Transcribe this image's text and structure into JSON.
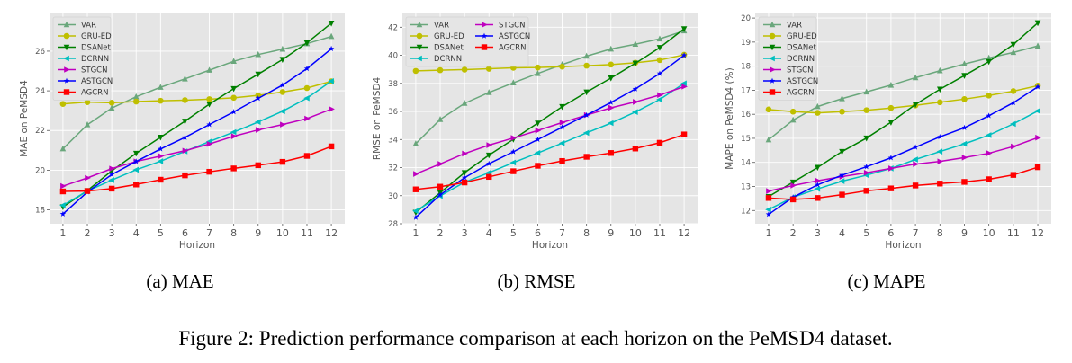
{
  "figure_caption": "Figure 2: Prediction performance comparison at each horizon on the PeMSD4 dataset.",
  "series_styles": [
    {
      "name": "VAR",
      "color": "#6aa77c",
      "marker": "triangle-up"
    },
    {
      "name": "GRU-ED",
      "color": "#bfbf00",
      "marker": "circle"
    },
    {
      "name": "DSANet",
      "color": "#008000",
      "marker": "triangle-down"
    },
    {
      "name": "DCRNN",
      "color": "#00bfbf",
      "marker": "triangle-left"
    },
    {
      "name": "STGCN",
      "color": "#bf00bf",
      "marker": "triangle-right"
    },
    {
      "name": "ASTGCN",
      "color": "#0000ff",
      "marker": "star"
    },
    {
      "name": "AGCRN",
      "color": "#ff0000",
      "marker": "square"
    }
  ],
  "chart_data": [
    {
      "type": "line",
      "caption": "(a) MAE",
      "xlabel": "Horizon",
      "ylabel": "MAE on PeMSD4",
      "x": [
        1,
        2,
        3,
        4,
        5,
        6,
        7,
        8,
        9,
        10,
        11,
        12
      ],
      "xlim": [
        0.45,
        12.55
      ],
      "ylim": [
        17.3,
        27.9
      ],
      "yticks": [
        18,
        20,
        22,
        24,
        26
      ],
      "grid": true,
      "legend": "top-left",
      "legend_columns": 1,
      "series": [
        {
          "name": "VAR",
          "values": [
            21.08,
            22.29,
            23.13,
            23.7,
            24.18,
            24.6,
            25.04,
            25.49,
            25.83,
            26.1,
            26.38,
            26.74
          ]
        },
        {
          "name": "GRU-ED",
          "values": [
            23.34,
            23.43,
            23.4,
            23.46,
            23.5,
            23.53,
            23.58,
            23.65,
            23.77,
            23.94,
            24.14,
            24.48
          ]
        },
        {
          "name": "DSANet",
          "values": [
            18.15,
            18.97,
            19.97,
            20.85,
            21.66,
            22.47,
            23.33,
            24.11,
            24.84,
            25.58,
            26.42,
            27.41
          ]
        },
        {
          "name": "DCRNN",
          "values": [
            18.23,
            18.95,
            19.5,
            20.02,
            20.45,
            20.95,
            21.44,
            21.92,
            22.43,
            22.97,
            23.63,
            24.49
          ]
        },
        {
          "name": "STGCN",
          "values": [
            19.2,
            19.61,
            20.08,
            20.44,
            20.71,
            20.98,
            21.32,
            21.71,
            22.03,
            22.3,
            22.6,
            23.08
          ]
        },
        {
          "name": "ASTGCN",
          "values": [
            17.79,
            18.9,
            19.78,
            20.44,
            21.07,
            21.65,
            22.3,
            22.94,
            23.62,
            24.29,
            25.12,
            26.12
          ]
        },
        {
          "name": "AGCRN",
          "values": [
            18.93,
            18.95,
            19.07,
            19.28,
            19.52,
            19.74,
            19.92,
            20.09,
            20.25,
            20.42,
            20.72,
            21.2
          ]
        }
      ]
    },
    {
      "type": "line",
      "caption": "(b) RMSE",
      "xlabel": "Horizon",
      "ylabel": "RMSE on PeMSD4",
      "x": [
        1,
        2,
        3,
        4,
        5,
        6,
        7,
        8,
        9,
        10,
        11,
        12
      ],
      "xlim": [
        0.45,
        12.55
      ],
      "ylim": [
        28.0,
        42.98
      ],
      "yticks": [
        28,
        30,
        32,
        34,
        36,
        38,
        40,
        42
      ],
      "grid": true,
      "legend": "top-left",
      "legend_columns": 2,
      "series": [
        {
          "name": "VAR",
          "values": [
            33.7,
            35.43,
            36.58,
            37.35,
            38.04,
            38.7,
            39.34,
            39.94,
            40.45,
            40.79,
            41.17,
            41.74
          ]
        },
        {
          "name": "GRU-ED",
          "values": [
            38.89,
            38.94,
            38.98,
            39.04,
            39.11,
            39.13,
            39.19,
            39.26,
            39.34,
            39.47,
            39.66,
            40.04
          ]
        },
        {
          "name": "DSANet",
          "values": [
            28.81,
            30.21,
            31.64,
            32.89,
            34.02,
            35.17,
            36.34,
            37.38,
            38.38,
            39.43,
            40.55,
            41.89
          ]
        },
        {
          "name": "DCRNN",
          "values": [
            28.91,
            29.98,
            30.96,
            31.64,
            32.36,
            33.04,
            33.74,
            34.47,
            35.17,
            35.96,
            36.85,
            38.0
          ]
        },
        {
          "name": "STGCN",
          "values": [
            31.55,
            32.26,
            33.0,
            33.6,
            34.11,
            34.64,
            35.21,
            35.74,
            36.26,
            36.68,
            37.17,
            37.77
          ]
        },
        {
          "name": "ASTGCN",
          "values": [
            28.45,
            30.06,
            31.28,
            32.28,
            33.13,
            34.0,
            34.87,
            35.74,
            36.64,
            37.6,
            38.7,
            40.0
          ]
        },
        {
          "name": "AGCRN",
          "values": [
            30.45,
            30.64,
            30.94,
            31.34,
            31.74,
            32.13,
            32.47,
            32.77,
            33.04,
            33.36,
            33.77,
            34.36
          ]
        }
      ]
    },
    {
      "type": "line",
      "caption": "(c) MAPE",
      "xlabel": "Horizon",
      "ylabel": "MAPE on PeMSD4 (%)",
      "x": [
        1,
        2,
        3,
        4,
        5,
        6,
        7,
        8,
        9,
        10,
        11,
        12
      ],
      "xlim": [
        0.45,
        12.55
      ],
      "ylim": [
        11.45,
        20.19
      ],
      "yticks": [
        12,
        13,
        14,
        15,
        16,
        17,
        18,
        19,
        20
      ],
      "grid": true,
      "legend": "top-left",
      "legend_columns": 1,
      "series": [
        {
          "name": "VAR",
          "values": [
            14.94,
            15.76,
            16.32,
            16.65,
            16.93,
            17.21,
            17.52,
            17.81,
            18.09,
            18.34,
            18.57,
            18.84
          ]
        },
        {
          "name": "GRU-ED",
          "values": [
            16.2,
            16.11,
            16.06,
            16.11,
            16.17,
            16.26,
            16.37,
            16.5,
            16.63,
            16.78,
            16.96,
            17.19
          ]
        },
        {
          "name": "DSANet",
          "values": [
            12.58,
            13.18,
            13.79,
            14.45,
            15.01,
            15.67,
            16.41,
            17.04,
            17.61,
            18.19,
            18.9,
            19.8
          ]
        },
        {
          "name": "DCRNN",
          "values": [
            12.04,
            12.55,
            12.9,
            13.22,
            13.47,
            13.75,
            14.12,
            14.45,
            14.77,
            15.13,
            15.6,
            16.14
          ]
        },
        {
          "name": "STGCN",
          "values": [
            12.81,
            13.04,
            13.24,
            13.41,
            13.57,
            13.75,
            13.93,
            14.04,
            14.2,
            14.38,
            14.66,
            15.03
          ]
        },
        {
          "name": "ASTGCN",
          "values": [
            11.84,
            12.55,
            13.07,
            13.47,
            13.82,
            14.19,
            14.63,
            15.06,
            15.44,
            15.94,
            16.48,
            17.14
          ]
        },
        {
          "name": "AGCRN",
          "values": [
            12.52,
            12.46,
            12.52,
            12.66,
            12.82,
            12.92,
            13.04,
            13.12,
            13.19,
            13.3,
            13.48,
            13.8
          ]
        }
      ]
    }
  ]
}
